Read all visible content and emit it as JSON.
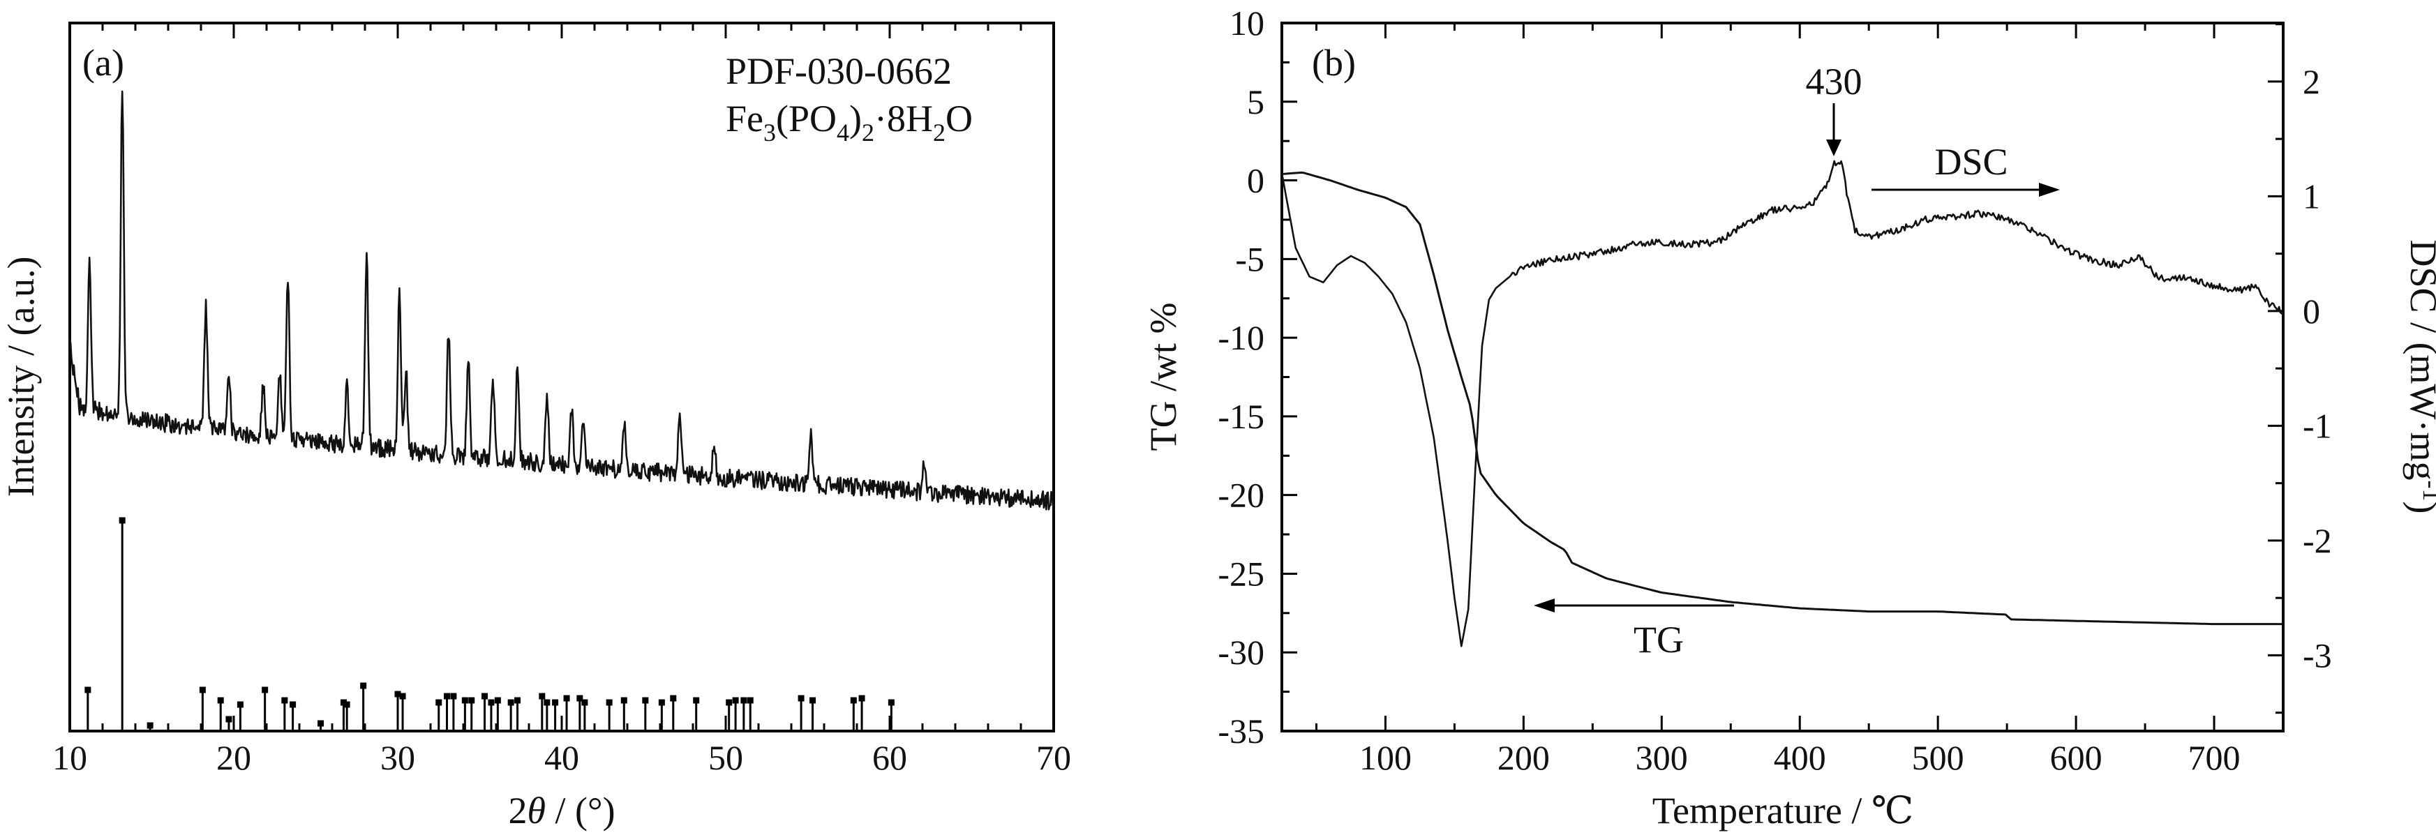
{
  "chart_data": [
    {
      "type": "line",
      "panel_label": "(a)",
      "xlabel": "2θ / (°)",
      "ylabel": "Intensity / (a.u.)",
      "xlim": [
        10,
        70
      ],
      "x_ticks": [
        "10",
        "20",
        "30",
        "40",
        "50",
        "60",
        "70"
      ],
      "legend": {
        "pdf": "PDF-030-0662",
        "formula": "Fe3(PO4)2·8H2O"
      },
      "grid": false,
      "pattern_peaks": [
        {
          "x": 11.2,
          "h": 0.45
        },
        {
          "x": 13.2,
          "h": 1.0
        },
        {
          "x": 18.3,
          "h": 0.38
        },
        {
          "x": 19.7,
          "h": 0.18
        },
        {
          "x": 21.8,
          "h": 0.15
        },
        {
          "x": 22.8,
          "h": 0.2
        },
        {
          "x": 23.3,
          "h": 0.5
        },
        {
          "x": 26.9,
          "h": 0.2
        },
        {
          "x": 28.1,
          "h": 0.6
        },
        {
          "x": 30.1,
          "h": 0.48
        },
        {
          "x": 30.5,
          "h": 0.25
        },
        {
          "x": 33.1,
          "h": 0.38
        },
        {
          "x": 34.3,
          "h": 0.3
        },
        {
          "x": 35.8,
          "h": 0.25
        },
        {
          "x": 37.3,
          "h": 0.3
        },
        {
          "x": 39.1,
          "h": 0.2
        },
        {
          "x": 40.6,
          "h": 0.18
        },
        {
          "x": 41.3,
          "h": 0.14
        },
        {
          "x": 43.8,
          "h": 0.15
        },
        {
          "x": 47.2,
          "h": 0.2
        },
        {
          "x": 49.3,
          "h": 0.1
        },
        {
          "x": 55.2,
          "h": 0.16
        },
        {
          "x": 62.1,
          "h": 0.08
        }
      ],
      "reference_lines": [
        {
          "x": 11.1,
          "h": 0.19
        },
        {
          "x": 13.2,
          "h": 1.0
        },
        {
          "x": 14.9,
          "h": 0.02
        },
        {
          "x": 18.1,
          "h": 0.19
        },
        {
          "x": 19.2,
          "h": 0.14
        },
        {
          "x": 19.7,
          "h": 0.05
        },
        {
          "x": 20.4,
          "h": 0.12
        },
        {
          "x": 21.9,
          "h": 0.19
        },
        {
          "x": 23.1,
          "h": 0.14
        },
        {
          "x": 23.6,
          "h": 0.12
        },
        {
          "x": 25.3,
          "h": 0.03
        },
        {
          "x": 26.7,
          "h": 0.13
        },
        {
          "x": 26.9,
          "h": 0.12
        },
        {
          "x": 27.9,
          "h": 0.21
        },
        {
          "x": 30.0,
          "h": 0.17
        },
        {
          "x": 30.3,
          "h": 0.16
        },
        {
          "x": 32.5,
          "h": 0.13
        },
        {
          "x": 33.0,
          "h": 0.16
        },
        {
          "x": 33.4,
          "h": 0.16
        },
        {
          "x": 34.1,
          "h": 0.14
        },
        {
          "x": 34.5,
          "h": 0.14
        },
        {
          "x": 35.3,
          "h": 0.16
        },
        {
          "x": 35.7,
          "h": 0.13
        },
        {
          "x": 36.1,
          "h": 0.14
        },
        {
          "x": 36.9,
          "h": 0.13
        },
        {
          "x": 37.3,
          "h": 0.14
        },
        {
          "x": 38.8,
          "h": 0.16
        },
        {
          "x": 39.1,
          "h": 0.13
        },
        {
          "x": 39.6,
          "h": 0.13
        },
        {
          "x": 40.3,
          "h": 0.15
        },
        {
          "x": 41.1,
          "h": 0.15
        },
        {
          "x": 41.4,
          "h": 0.13
        },
        {
          "x": 42.9,
          "h": 0.13
        },
        {
          "x": 43.8,
          "h": 0.14
        },
        {
          "x": 45.1,
          "h": 0.14
        },
        {
          "x": 46.1,
          "h": 0.13
        },
        {
          "x": 46.8,
          "h": 0.15
        },
        {
          "x": 48.2,
          "h": 0.14
        },
        {
          "x": 50.2,
          "h": 0.13
        },
        {
          "x": 50.6,
          "h": 0.14
        },
        {
          "x": 51.1,
          "h": 0.14
        },
        {
          "x": 51.5,
          "h": 0.14
        },
        {
          "x": 54.6,
          "h": 0.15
        },
        {
          "x": 55.3,
          "h": 0.14
        },
        {
          "x": 57.8,
          "h": 0.14
        },
        {
          "x": 58.3,
          "h": 0.15
        },
        {
          "x": 60.1,
          "h": 0.13
        }
      ]
    },
    {
      "type": "line",
      "panel_label": "(b)",
      "xlabel": "Temperature / ℃",
      "ylabel": "TG /wt %",
      "y2label": "DSC / (mW·mg⁻¹)",
      "xlim": [
        25,
        750
      ],
      "ylim": [
        -35,
        10
      ],
      "y2lim": [
        -3.66,
        2.51
      ],
      "x_ticks": [
        "100",
        "200",
        "300",
        "400",
        "500",
        "600",
        "700"
      ],
      "y_ticks": [
        "10",
        "5",
        "0",
        "-5",
        "-10",
        "-15",
        "-20",
        "-25",
        "-30",
        "-35"
      ],
      "y2_ticks": [
        "2",
        "1",
        "0",
        "-1",
        "-2",
        "-3"
      ],
      "grid": false,
      "series": [
        {
          "name": "TG",
          "axis": "left",
          "x": [
            25,
            40,
            60,
            80,
            100,
            115,
            125,
            135,
            145,
            155,
            162,
            168,
            180,
            200,
            220,
            230,
            235,
            260,
            300,
            350,
            400,
            450,
            500,
            550,
            552,
            600,
            650,
            700,
            750
          ],
          "y": [
            0.4,
            0.5,
            0.0,
            -0.6,
            -1.1,
            -1.7,
            -2.8,
            -6.0,
            -9.5,
            -12.5,
            -14.5,
            -18.5,
            -20.0,
            -21.8,
            -23.0,
            -23.5,
            -24.3,
            -25.3,
            -26.2,
            -26.8,
            -27.2,
            -27.4,
            -27.4,
            -27.6,
            -27.9,
            -28.0,
            -28.1,
            -28.2,
            -28.2
          ]
        },
        {
          "name": "DSC",
          "axis": "right",
          "x": [
            25,
            35,
            45,
            55,
            65,
            75,
            85,
            95,
            105,
            115,
            125,
            135,
            145,
            150,
            155,
            160,
            165,
            170,
            175,
            180,
            190,
            200,
            220,
            240,
            260,
            280,
            300,
            320,
            340,
            360,
            380,
            400,
            410,
            420,
            425,
            430,
            433,
            436,
            440,
            450,
            470,
            490,
            510,
            530,
            550,
            570,
            590,
            610,
            630,
            645,
            660,
            680,
            700,
            720,
            730,
            740,
            750
          ],
          "y": [
            1.2,
            0.55,
            0.3,
            0.25,
            0.4,
            0.48,
            0.42,
            0.3,
            0.15,
            -0.1,
            -0.5,
            -1.1,
            -2.0,
            -2.5,
            -2.92,
            -2.6,
            -1.4,
            -0.3,
            0.1,
            0.2,
            0.3,
            0.38,
            0.45,
            0.48,
            0.52,
            0.58,
            0.6,
            0.58,
            0.6,
            0.75,
            0.88,
            0.9,
            0.95,
            1.1,
            1.28,
            1.3,
            1.1,
            0.9,
            0.7,
            0.65,
            0.7,
            0.8,
            0.82,
            0.85,
            0.8,
            0.7,
            0.55,
            0.45,
            0.4,
            0.48,
            0.28,
            0.3,
            0.22,
            0.18,
            0.22,
            0.05,
            0.0
          ]
        }
      ],
      "annotations": {
        "peak_label": "430",
        "dsc_label": "DSC",
        "tg_label": "TG"
      }
    }
  ]
}
